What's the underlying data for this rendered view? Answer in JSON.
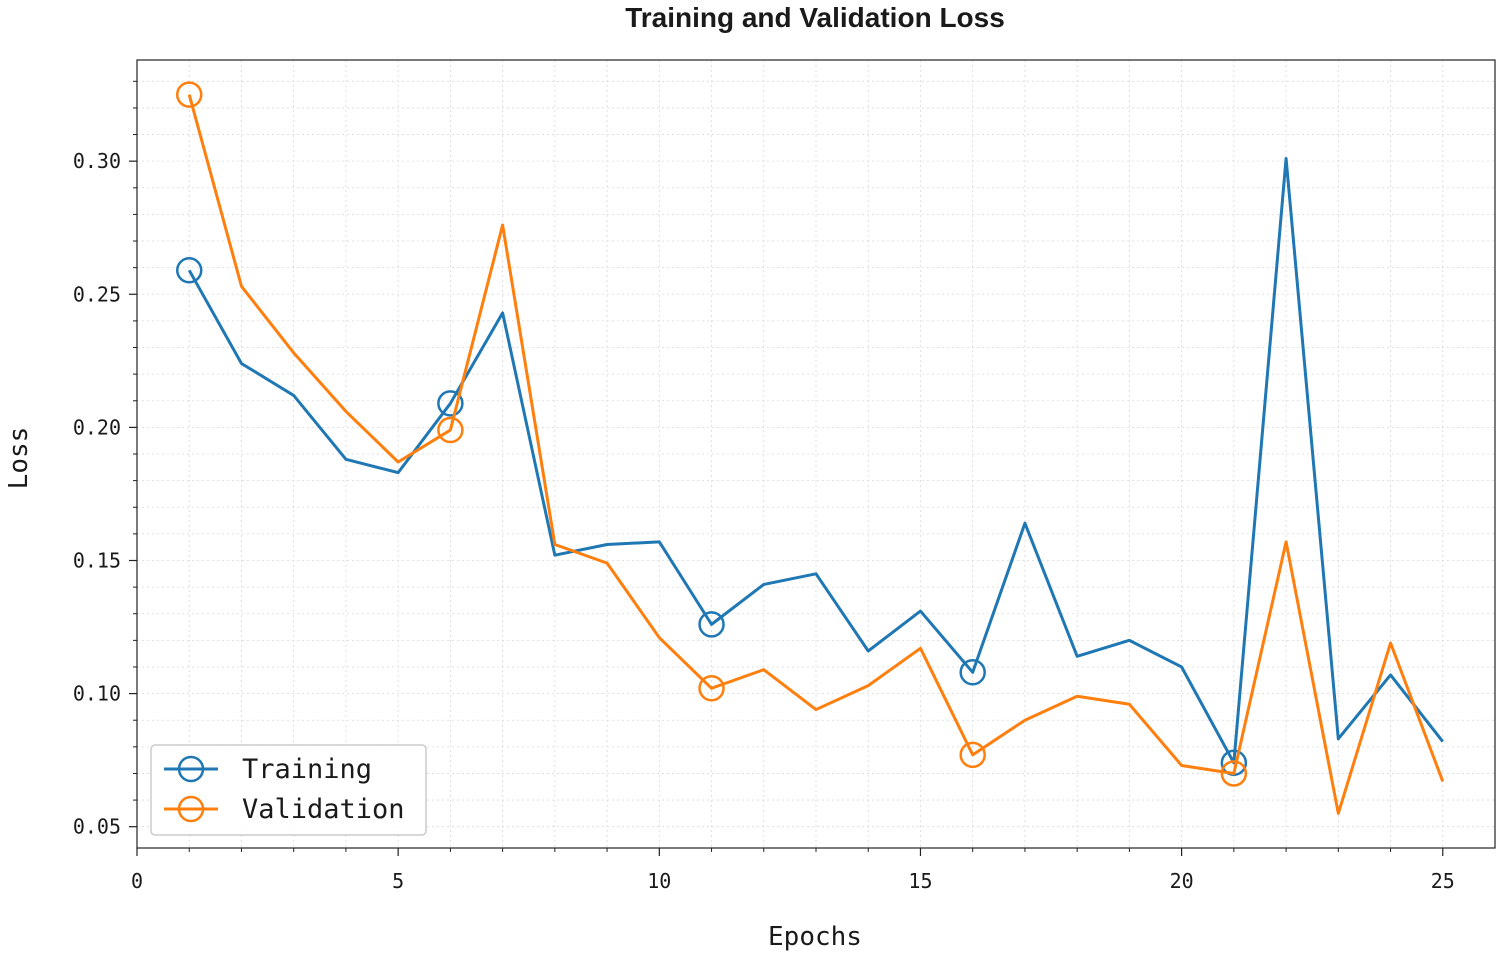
{
  "chart_data": {
    "type": "line",
    "title": "Training and Validation Loss",
    "xlabel": "Epochs",
    "ylabel": "Loss",
    "xlim": [
      0,
      26
    ],
    "ylim": [
      0.042,
      0.338
    ],
    "xticks": [
      0,
      5,
      10,
      15,
      20,
      25
    ],
    "xtick_labels": [
      "0",
      "5",
      "10",
      "15",
      "20",
      "25"
    ],
    "yticks": [
      0.05,
      0.1,
      0.15,
      0.2,
      0.25,
      0.3
    ],
    "ytick_labels": [
      "0.05",
      "0.10",
      "0.15",
      "0.20",
      "0.25",
      "0.30"
    ],
    "grid": true,
    "legend_position": "lower-left",
    "x": [
      1,
      2,
      3,
      4,
      5,
      6,
      7,
      8,
      9,
      10,
      11,
      12,
      13,
      14,
      15,
      16,
      17,
      18,
      19,
      20,
      21,
      22,
      23,
      24,
      25
    ],
    "series": [
      {
        "name": "Training",
        "color": "#1f77b4",
        "marker_every": 5,
        "values": [
          0.259,
          0.224,
          0.212,
          0.188,
          0.183,
          0.209,
          0.243,
          0.152,
          0.156,
          0.157,
          0.126,
          0.141,
          0.145,
          0.116,
          0.131,
          0.108,
          0.164,
          0.114,
          0.12,
          0.11,
          0.074,
          0.301,
          0.083,
          0.107,
          0.082
        ]
      },
      {
        "name": "Validation",
        "color": "#ff7f0e",
        "marker_every": 5,
        "values": [
          0.325,
          0.253,
          0.228,
          0.206,
          0.187,
          0.199,
          0.276,
          0.156,
          0.149,
          0.121,
          0.102,
          0.109,
          0.094,
          0.103,
          0.117,
          0.077,
          0.09,
          0.099,
          0.096,
          0.073,
          0.07,
          0.157,
          0.055,
          0.119,
          0.067
        ]
      }
    ]
  }
}
